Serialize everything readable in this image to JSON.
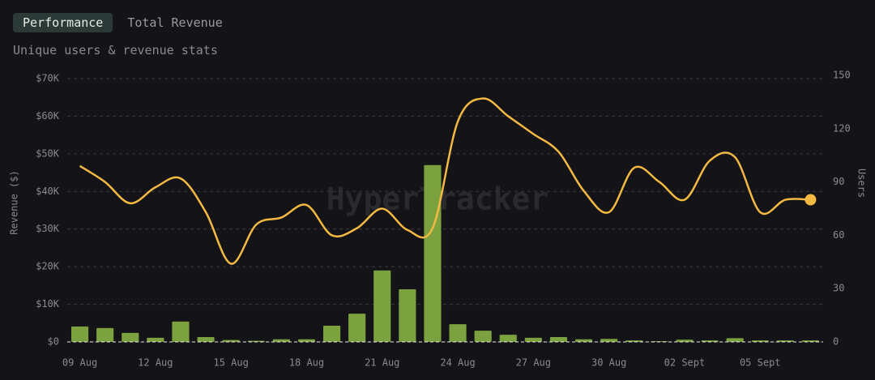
{
  "tabs": [
    "Performance",
    "Total Revenue"
  ],
  "chart_data": {
    "type": "bar-line",
    "subtitle": "Unique users & revenue stats",
    "watermark": "HyperTracker",
    "y_label": "Revenue ($)",
    "y2_label": "Users",
    "categories": [
      "09 Aug",
      null,
      null,
      "12 Aug",
      null,
      null,
      "15 Aug",
      null,
      null,
      "18 Aug",
      null,
      null,
      "21 Aug",
      null,
      null,
      "24 Aug",
      null,
      null,
      "27 Aug",
      null,
      null,
      "30 Aug",
      null,
      null,
      "02 Sept",
      null,
      null,
      "05 Sept",
      null,
      null
    ],
    "series": [
      {
        "type": "bar",
        "color": "#7ba23f",
        "values": [
          4100,
          3700,
          2400,
          1100,
          5400,
          1300,
          500,
          300,
          700,
          700,
          4300,
          7500,
          19000,
          14000,
          47000,
          4700,
          3000,
          1900,
          1100,
          1300,
          700,
          800,
          400,
          200,
          600,
          400,
          1000,
          400,
          400,
          400
        ]
      },
      {
        "type": "line",
        "axis": "y2",
        "color": "#f4b942",
        "values": [
          99,
          90,
          78,
          87,
          92,
          73,
          44,
          66,
          70,
          77,
          60,
          64,
          75,
          63,
          64,
          124,
          137,
          127,
          117,
          107,
          85,
          73,
          98,
          90,
          80,
          102,
          104,
          73,
          80,
          80
        ]
      }
    ],
    "ylim": [
      0,
      70000
    ],
    "yticks": [
      {
        "value": 0,
        "label": "$0"
      },
      {
        "value": 10000,
        "label": "$10K"
      },
      {
        "value": 20000,
        "label": "$20K"
      },
      {
        "value": 30000,
        "label": "$30K"
      },
      {
        "value": 40000,
        "label": "$40K"
      },
      {
        "value": 50000,
        "label": "$50K"
      },
      {
        "value": 60000,
        "label": "$60K"
      },
      {
        "value": 70000,
        "label": "$70K"
      }
    ],
    "y2lim": [
      0,
      150
    ],
    "y2ticks": [
      0,
      30,
      60,
      90,
      120,
      150
    ],
    "grid": true
  }
}
